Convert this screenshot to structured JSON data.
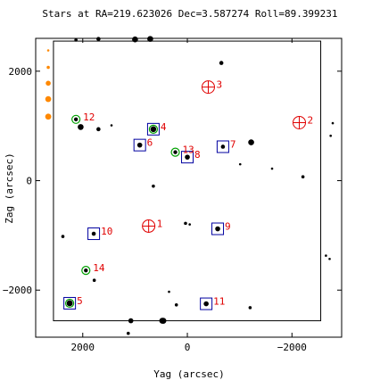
{
  "chart_data": {
    "type": "scatter",
    "title": "Stars at RA=219.623026 Dec=3.587274 Roll=89.399231",
    "xlabel": "Yag (arcsec)",
    "ylabel": "Zag (arcsec)",
    "xlim": [
      2900,
      -2950
    ],
    "ylim": [
      -2860,
      2600
    ],
    "x_ticks": [
      2000,
      0,
      -2000
    ],
    "x_tick_labels": [
      "2000",
      "0",
      "−2000"
    ],
    "y_ticks": [
      2000,
      0,
      -2000
    ],
    "y_tick_labels": [
      "2000",
      "0",
      "−2000"
    ],
    "ccd_box": {
      "yag": [
        2560,
        -2550
      ],
      "zag": [
        -2560,
        2550
      ]
    },
    "colors": {
      "guide": "#0000a0",
      "acq": "#00a000",
      "fid": "#e00000",
      "label": "#e00000",
      "edge_star": "#ff8800",
      "field_star": "#000000"
    },
    "field_stars": [
      {
        "yag": -2650,
        "zag": -1370,
        "mag": 10.5
      },
      {
        "yag": -2720,
        "zag": -1430,
        "mag": 10.5
      },
      {
        "yag": 2130,
        "zag": 2570,
        "mag": 10.0
      },
      {
        "yag": 1700,
        "zag": 2590,
        "mag": 9.5
      },
      {
        "yag": 1000,
        "zag": 2580,
        "mag": 8.5
      },
      {
        "yag": 710,
        "zag": 2590,
        "mag": 8.5
      },
      {
        "yag": -650,
        "zag": 2150,
        "mag": 9.5
      },
      {
        "yag": 2040,
        "zag": 980,
        "mag": 8.5
      },
      {
        "yag": 1700,
        "zag": 940,
        "mag": 9.5
      },
      {
        "yag": 1450,
        "zag": 1010,
        "mag": 10.5
      },
      {
        "yag": -1220,
        "zag": 700,
        "mag": 8.5
      },
      {
        "yag": -1010,
        "zag": 300,
        "mag": 10.5
      },
      {
        "yag": -1620,
        "zag": 220,
        "mag": 10.5
      },
      {
        "yag": -2210,
        "zag": 70,
        "mag": 10.0
      },
      {
        "yag": -2780,
        "zag": 1050,
        "mag": 10.5
      },
      {
        "yag": -2740,
        "zag": 820,
        "mag": 10.5
      },
      {
        "yag": 650,
        "zag": -100,
        "mag": 10.0
      },
      {
        "yag": 35,
        "zag": -780,
        "mag": 10.0
      },
      {
        "yag": -45,
        "zag": -800,
        "mag": 10.5
      },
      {
        "yag": 2380,
        "zag": -1020,
        "mag": 10.0
      },
      {
        "yag": 1780,
        "zag": -1820,
        "mag": 10.0
      },
      {
        "yag": 350,
        "zag": -2030,
        "mag": 10.5
      },
      {
        "yag": 210,
        "zag": -2270,
        "mag": 10.0
      },
      {
        "yag": -1200,
        "zag": -2320,
        "mag": 10.0
      },
      {
        "yag": 1080,
        "zag": -2560,
        "mag": 9.0
      },
      {
        "yag": 480,
        "zag": -2560,
        "mag": 8.5
      },
      {
        "yag": 1130,
        "zag": -2790,
        "mag": 10.0
      },
      {
        "yag": 460,
        "zag": -2560,
        "mag": 8.0
      }
    ],
    "edge_stars": [
      {
        "yag": 2660,
        "zag": 2380,
        "mag": 10.5
      },
      {
        "yag": 2660,
        "zag": 2070,
        "mag": 10.0
      },
      {
        "yag": 2660,
        "zag": 1780,
        "mag": 9.0
      },
      {
        "yag": 2660,
        "zag": 1490,
        "mag": 8.5
      },
      {
        "yag": 2660,
        "zag": 1170,
        "mag": 8.0
      }
    ],
    "guide_stars": [
      {
        "id": "4",
        "yag": 650,
        "zag": 940,
        "mag": 8.5
      },
      {
        "id": "5",
        "yag": 2250,
        "zag": -2240,
        "mag": 8.0
      },
      {
        "id": "6",
        "yag": 910,
        "zag": 650,
        "mag": 9.0
      },
      {
        "id": "7",
        "yag": -680,
        "zag": 620,
        "mag": 9.5
      },
      {
        "id": "8",
        "yag": 0,
        "zag": 430,
        "mag": 9.0
      },
      {
        "id": "9",
        "yag": -580,
        "zag": -880,
        "mag": 9.0
      },
      {
        "id": "10",
        "yag": 1790,
        "zag": -970,
        "mag": 9.5
      },
      {
        "id": "11",
        "yag": -360,
        "zag": -2250,
        "mag": 9.0
      }
    ],
    "acq_stars": [
      {
        "id": "12",
        "yag": 2130,
        "zag": 1120,
        "mag": 9.0
      },
      {
        "id": "13",
        "yag": 230,
        "zag": 520,
        "mag": 9.5
      },
      {
        "id": "14",
        "yag": 1940,
        "zag": -1640,
        "mag": 9.5
      },
      {
        "id": "4",
        "yag": 650,
        "zag": 940,
        "mag": 8.5
      },
      {
        "id": "5",
        "yag": 2250,
        "zag": -2240,
        "mag": 8.0
      }
    ],
    "fids": [
      {
        "id": "1",
        "yag": 740,
        "zag": -830
      },
      {
        "id": "2",
        "yag": -2140,
        "zag": 1060
      },
      {
        "id": "3",
        "yag": -400,
        "zag": 1710
      }
    ]
  }
}
